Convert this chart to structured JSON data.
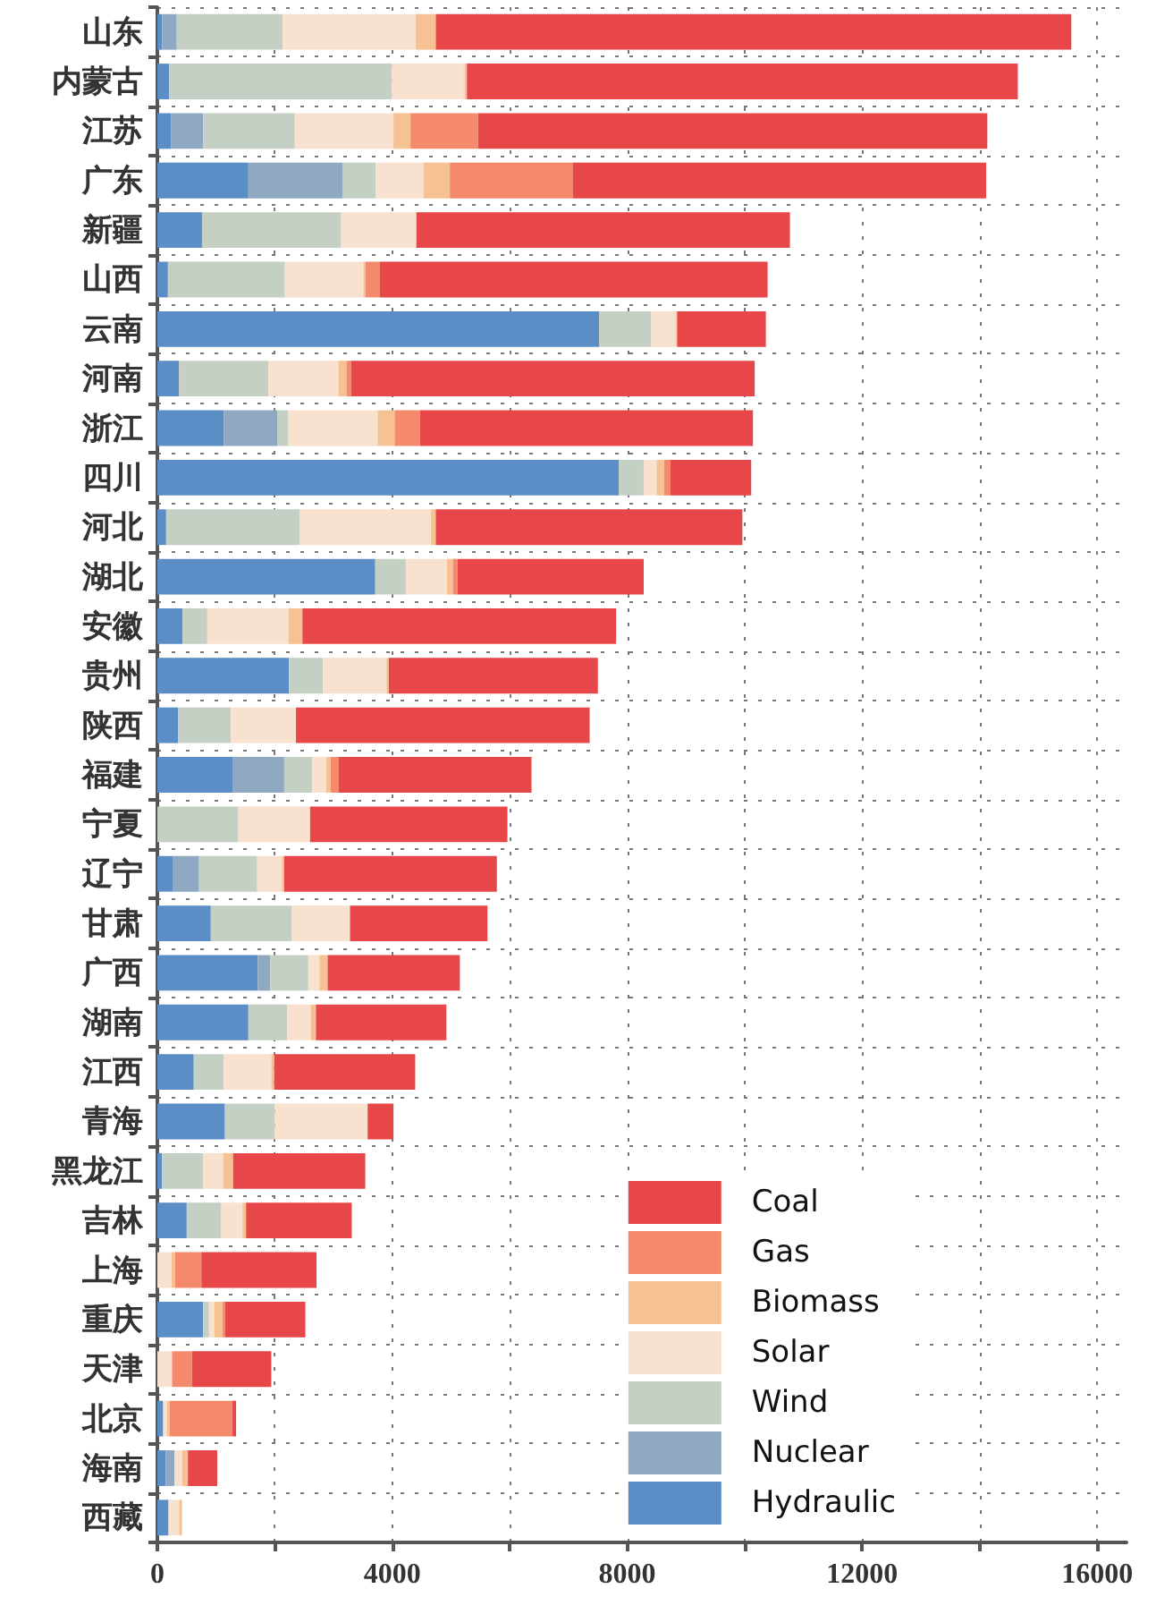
{
  "chart_data": {
    "type": "bar",
    "orientation": "horizontal",
    "stacked": true,
    "categories": [
      "山东",
      "内蒙古",
      "江苏",
      "广东",
      "新疆",
      "山西",
      "云南",
      "河南",
      "浙江",
      "四川",
      "河北",
      "湖北",
      "安徽",
      "贵州",
      "陕西",
      "福建",
      "宁夏",
      "辽宁",
      "甘肃",
      "广西",
      "湖南",
      "江西",
      "青海",
      "黑龙江",
      "吉林",
      "上海",
      "重庆",
      "天津",
      "北京",
      "海南",
      "西藏"
    ],
    "series": [
      {
        "name": "Hydraulic",
        "color": "#5b8ec6",
        "values": [
          80,
          200,
          230,
          1550,
          760,
          180,
          7520,
          370,
          1130,
          7860,
          150,
          3710,
          430,
          2240,
          350,
          1290,
          0,
          270,
          910,
          1710,
          1550,
          620,
          1150,
          80,
          500,
          0,
          780,
          0,
          100,
          140,
          190
        ]
      },
      {
        "name": "Nuclear",
        "color": "#8fa9c3",
        "values": [
          250,
          0,
          550,
          1610,
          0,
          0,
          0,
          0,
          910,
          0,
          0,
          0,
          0,
          0,
          0,
          870,
          0,
          440,
          0,
          210,
          0,
          0,
          0,
          0,
          0,
          0,
          0,
          0,
          0,
          150,
          0
        ]
      },
      {
        "name": "Wind",
        "color": "#c5d0c4",
        "values": [
          1800,
          3790,
          1560,
          560,
          2370,
          1990,
          890,
          1520,
          190,
          420,
          2270,
          520,
          420,
          580,
          900,
          480,
          1380,
          990,
          1380,
          650,
          660,
          510,
          850,
          700,
          590,
          0,
          100,
          0,
          0,
          null,
          0
        ]
      },
      {
        "name": "Solar",
        "color": "#f9e1cf",
        "values": [
          2270,
          1240,
          1680,
          810,
          1280,
          1340,
          420,
          1190,
          1520,
          220,
          2240,
          700,
          1380,
          1080,
          1110,
          230,
          1220,
          420,
          990,
          190,
          400,
          810,
          1580,
          340,
          360,
          240,
          90,
          250,
          60,
          130,
          180
        ]
      },
      {
        "name": "Biomass",
        "color": "#f6c293",
        "values": [
          340,
          40,
          290,
          450,
          0,
          30,
          20,
          140,
          290,
          130,
          80,
          100,
          240,
          40,
          0,
          80,
          0,
          40,
          0,
          140,
          90,
          50,
          0,
          170,
          60,
          60,
          140,
          0,
          50,
          100,
          50
        ]
      },
      {
        "name": "Gas",
        "color": "#f4896b",
        "values": [
          0,
          0,
          1150,
          2090,
          0,
          250,
          0,
          80,
          430,
          100,
          0,
          80,
          0,
          0,
          0,
          140,
          0,
          0,
          0,
          0,
          0,
          0,
          0,
          0,
          0,
          450,
          40,
          340,
          1070,
          0,
          0
        ]
      },
      {
        "name": "Coal",
        "color": "#e8474a",
        "values": [
          10820,
          9380,
          8670,
          7040,
          6360,
          6600,
          1510,
          6870,
          5670,
          1380,
          5220,
          3170,
          5340,
          3560,
          5000,
          3280,
          3360,
          3620,
          2340,
          2250,
          2220,
          2400,
          440,
          2250,
          1800,
          1960,
          1370,
          1350,
          60,
          500,
          0
        ]
      }
    ],
    "xlim": [
      0,
      16500
    ],
    "xticks": [
      0,
      {
        "value": 2000,
        "label": null
      },
      4000,
      {
        "value": 6000,
        "label": null
      },
      8000,
      {
        "value": 10000,
        "label": null
      },
      12000,
      {
        "value": 14000,
        "label": null
      },
      16000
    ],
    "grid": true,
    "legend": "bottom right"
  }
}
